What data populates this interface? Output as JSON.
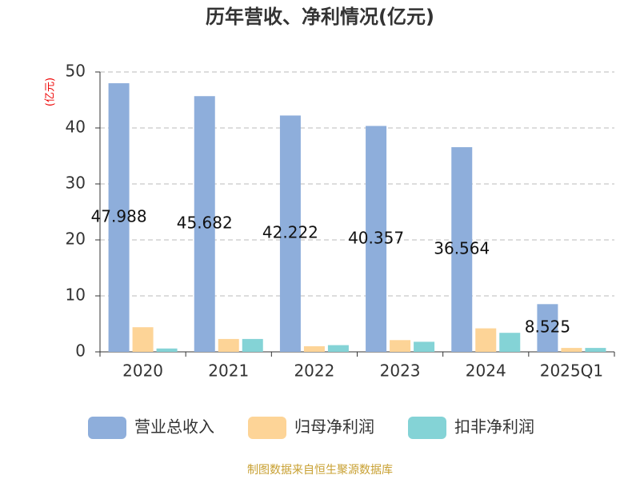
{
  "chart_data": {
    "type": "bar",
    "title": "历年营收、净利情况(亿元)",
    "y_unit_label": "(亿元)",
    "source": "制图数据来自恒生聚源数据库",
    "categories": [
      "2020",
      "2021",
      "2022",
      "2023",
      "2024",
      "2025Q1"
    ],
    "series": [
      {
        "name": "营业总收入",
        "color": "#8eaedb",
        "values": [
          47.988,
          45.682,
          42.222,
          40.357,
          36.564,
          8.525
        ],
        "show_labels": true
      },
      {
        "name": "归母净利润",
        "color": "#fdd497",
        "values": [
          4.4,
          2.3,
          1.0,
          2.1,
          4.2,
          0.7
        ],
        "show_labels": false
      },
      {
        "name": "扣非净利润",
        "color": "#84d3d6",
        "values": [
          0.6,
          2.3,
          1.2,
          1.8,
          3.4,
          0.7
        ],
        "show_labels": false
      }
    ],
    "ylim": [
      0,
      50
    ],
    "yticks": [
      0,
      10,
      20,
      30,
      40,
      50
    ],
    "grid": true
  }
}
